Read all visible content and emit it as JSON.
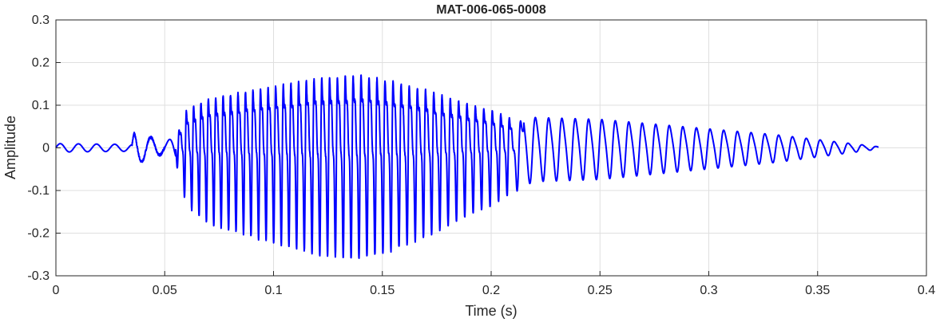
{
  "chart_data": {
    "type": "line",
    "title": "MAT-006-065-0008",
    "xlabel": "Time (s)",
    "ylabel": "Amplitude",
    "xlim": [
      0,
      0.4
    ],
    "ylim": [
      -0.3,
      0.3
    ],
    "grid": true,
    "x_ticks": [
      0,
      0.05,
      0.1,
      0.15,
      0.2,
      0.25,
      0.3,
      0.35,
      0.4
    ],
    "y_ticks": [
      -0.3,
      -0.2,
      -0.1,
      0,
      0.1,
      0.2,
      0.3
    ],
    "x_tick_labels": [
      "0",
      "0.05",
      "0.1",
      "0.15",
      "0.2",
      "0.25",
      "0.3",
      "0.35",
      "0.4"
    ],
    "y_tick_labels": [
      "-0.3",
      "-0.2",
      "-0.1",
      "0",
      "0.1",
      "0.2",
      "0.3"
    ],
    "series": [
      {
        "color": "#0000ff",
        "duration_s": 0.378,
        "envelope": {
          "x": [
            0,
            0.035,
            0.036,
            0.05,
            0.055,
            0.06,
            0.07,
            0.09,
            0.105,
            0.12,
            0.14,
            0.155,
            0.17,
            0.19,
            0.2,
            0.21,
            0.22,
            0.25,
            0.27,
            0.3,
            0.33,
            0.36,
            0.378
          ],
          "y": [
            0.01,
            0.008,
            0.04,
            0.012,
            0.03,
            0.13,
            0.17,
            0.2,
            0.22,
            0.24,
            0.25,
            0.23,
            0.2,
            0.15,
            0.13,
            0.1,
            0.08,
            0.075,
            0.065,
            0.05,
            0.035,
            0.015,
            0.003
          ]
        }
      }
    ]
  }
}
